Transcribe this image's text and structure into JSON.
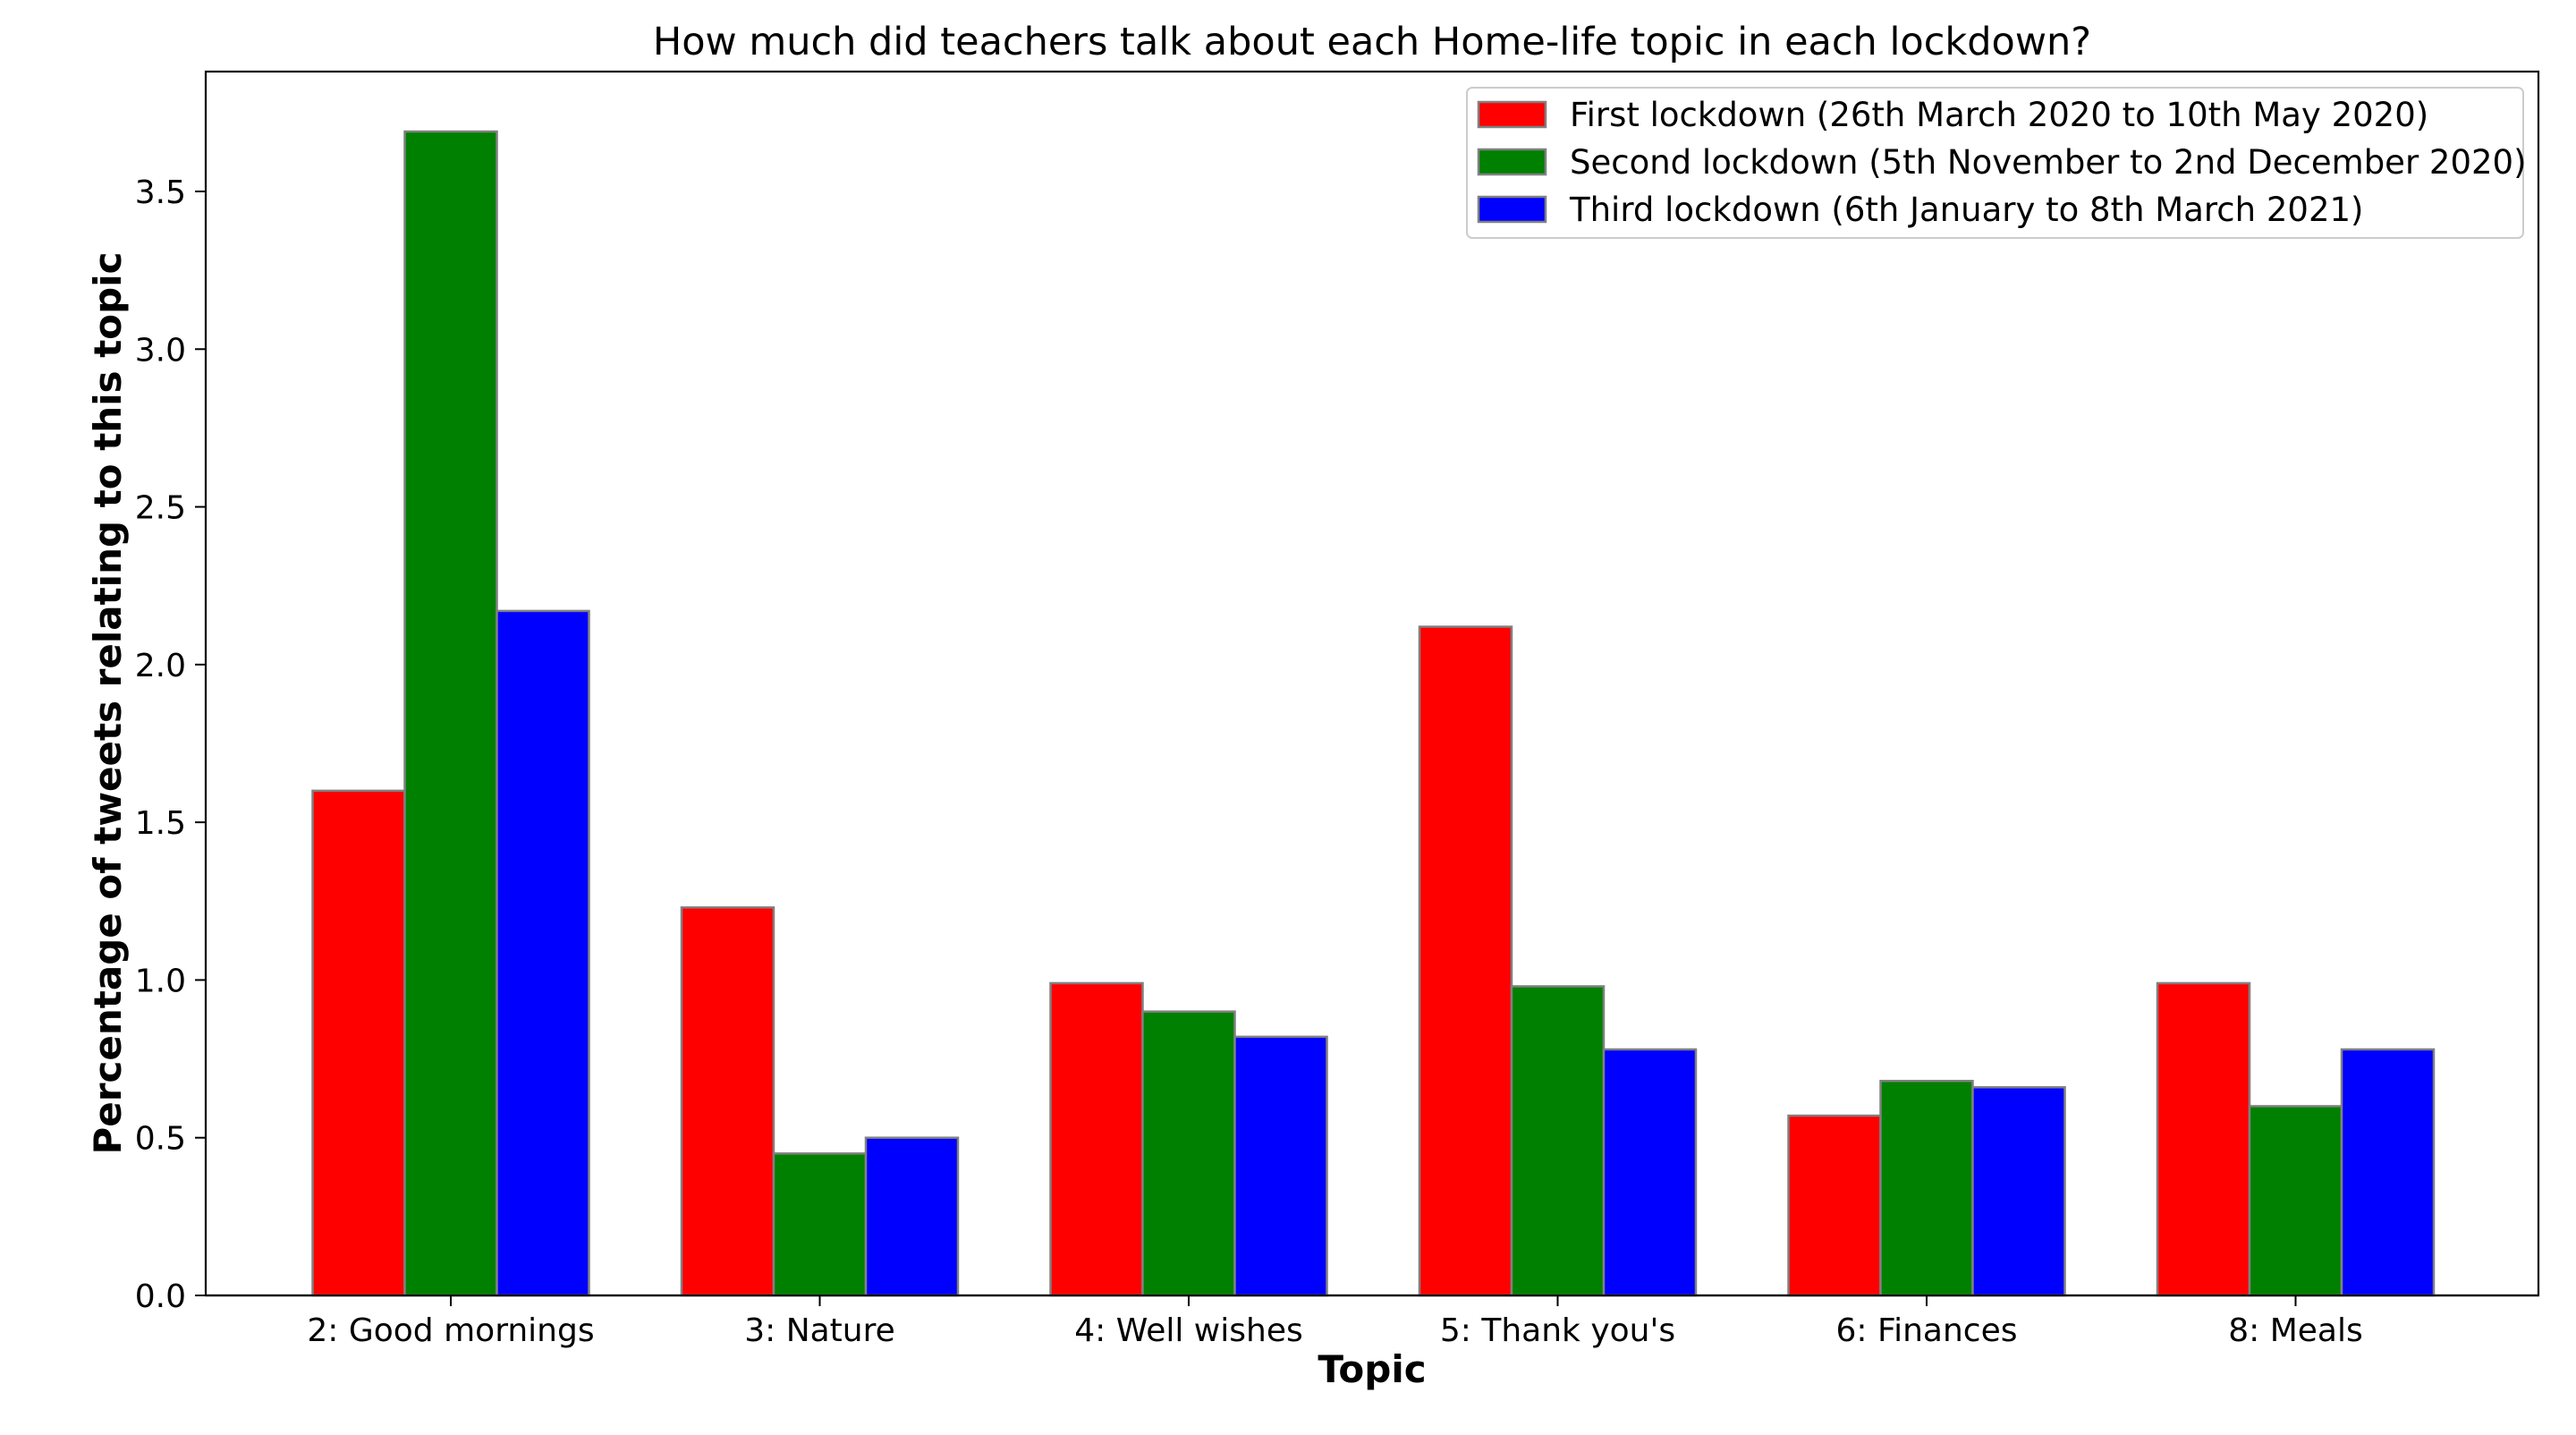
{
  "chart_data": {
    "type": "bar",
    "title": "How much did teachers talk about each Home-life topic in each lockdown?",
    "xlabel": "Topic",
    "ylabel": "Percentage of tweets relating to this topic",
    "categories": [
      "2: Good mornings",
      "3: Nature",
      "4: Well wishes",
      "5: Thank you's",
      "6: Finances",
      "8: Meals"
    ],
    "series": [
      {
        "name": "First lockdown (26th March 2020 to 10th May 2020)",
        "color": "#ff0000",
        "values": [
          1.6,
          1.23,
          0.99,
          2.12,
          0.57,
          0.99
        ]
      },
      {
        "name": "Second lockdown (5th November to 2nd December 2020)",
        "color": "#008000",
        "values": [
          3.69,
          0.45,
          0.9,
          0.98,
          0.68,
          0.6
        ]
      },
      {
        "name": "Third lockdown (6th January to 8th March 2021)",
        "color": "#0000ff",
        "values": [
          2.17,
          0.5,
          0.82,
          0.78,
          0.66,
          0.78
        ]
      }
    ],
    "ylim": [
      0,
      3.88
    ],
    "yticks": [
      "0.0",
      "0.5",
      "1.0",
      "1.5",
      "2.0",
      "2.5",
      "3.0",
      "3.5"
    ],
    "grid": false,
    "legend_position": "top-right"
  }
}
